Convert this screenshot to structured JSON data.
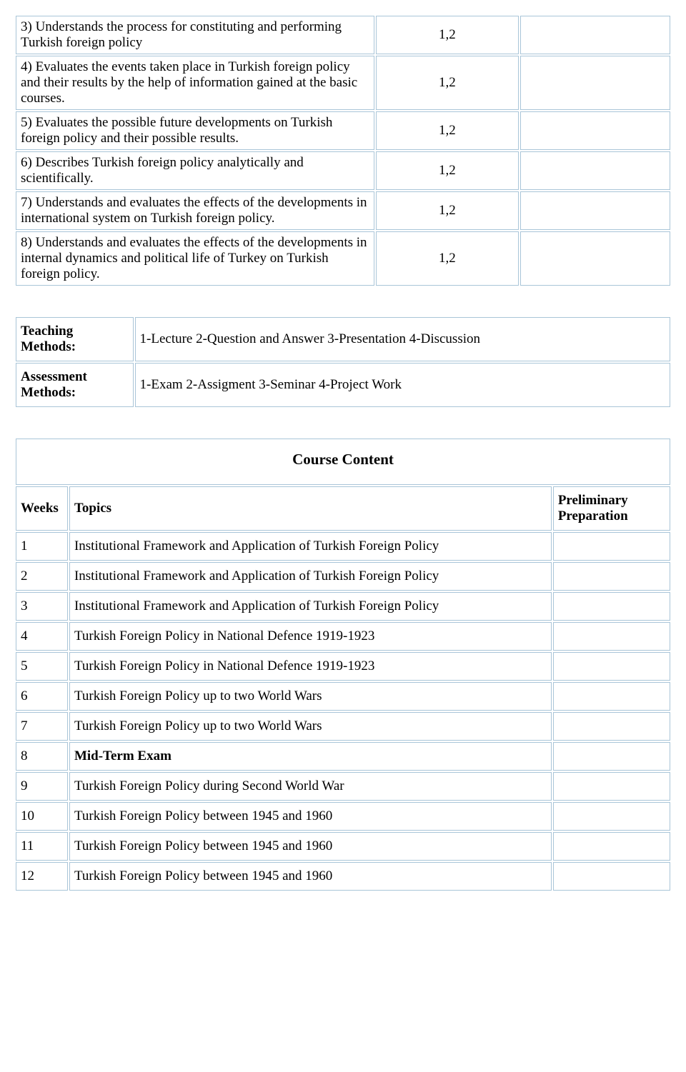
{
  "outcomes": [
    {
      "desc": "3) Understands the process for constituting and performing Turkish foreign policy",
      "val": "1,2"
    },
    {
      "desc": "4) Evaluates the events taken place in Turkish foreign policy and their results by the help of information gained at the basic courses.",
      "val": "1,2"
    },
    {
      "desc": "5) Evaluates the possible future developments on Turkish foreign policy and their possible results.",
      "val": "1,2"
    },
    {
      "desc": "6) Describes Turkish foreign policy analytically and scientifically.",
      "val": "1,2"
    },
    {
      "desc": "7) Understands and evaluates the effects of the developments in international system on Turkish foreign policy.",
      "val": "1,2"
    },
    {
      "desc": "8) Understands and evaluates the effects of the developments in internal dynamics and political life of Turkey on Turkish foreign policy.",
      "val": "1,2"
    }
  ],
  "methods": {
    "teaching_label": "Teaching Methods:",
    "teaching_value": "1-Lecture  2-Question and Answer  3-Presentation 4-Discussion",
    "assessment_label": "Assessment Methods:",
    "assessment_value": "1-Exam 2-Assigment 3-Seminar 4-Project Work"
  },
  "content": {
    "title": "Course Content",
    "header_weeks": "Weeks",
    "header_topics": "Topics",
    "header_prep": "Preliminary Preparation",
    "rows": [
      {
        "week": "1",
        "topic": "Institutional Framework and Application of Turkish Foreign Policy",
        "justify": true,
        "bold": false
      },
      {
        "week": "2",
        "topic": "Institutional Framework and Application of Turkish Foreign Policy",
        "justify": true,
        "bold": false
      },
      {
        "week": "3",
        "topic": "Institutional Framework and Application of Turkish Foreign Policy",
        "justify": true,
        "bold": false
      },
      {
        "week": "4",
        "topic": "Turkish Foreign Policy in National Defence 1919-1923",
        "justify": false,
        "bold": false
      },
      {
        "week": "5",
        "topic": "Turkish Foreign Policy in National Defence 1919-1923",
        "justify": false,
        "bold": false
      },
      {
        "week": "6",
        "topic": "Turkish Foreign Policy up to two World Wars",
        "justify": false,
        "bold": false
      },
      {
        "week": "7",
        "topic": "Turkish Foreign Policy up to two World Wars",
        "justify": false,
        "bold": false
      },
      {
        "week": "8",
        "topic": "Mid-Term Exam",
        "justify": false,
        "bold": true
      },
      {
        "week": "9",
        "topic": "Turkish Foreign Policy during Second World War",
        "justify": false,
        "bold": false
      },
      {
        "week": "10",
        "topic": "Turkish Foreign Policy between 1945 and 1960",
        "justify": false,
        "bold": false
      },
      {
        "week": "11",
        "topic": "Turkish Foreign Policy between 1945 and 1960",
        "justify": false,
        "bold": false
      },
      {
        "week": "12",
        "topic": "Turkish Foreign Policy between 1945 and 1960",
        "justify": false,
        "bold": false
      }
    ]
  }
}
